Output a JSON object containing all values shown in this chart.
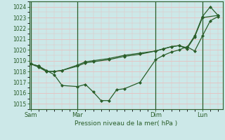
{
  "background_color": "#cce8e8",
  "grid_major_color": "#e8c0c0",
  "grid_minor_color": "#e8c0c0",
  "line_color": "#2a5e2a",
  "marker_color": "#2a5e2a",
  "title": "Pression niveau de la mer( hPa )",
  "xlabel_ticks": [
    "Sam",
    "Mar",
    "Dim",
    "Lun"
  ],
  "xlabel_tick_positions": [
    0,
    3,
    8,
    11
  ],
  "ylim": [
    1014.5,
    1024.5
  ],
  "yticks": [
    1015,
    1016,
    1017,
    1018,
    1019,
    1020,
    1021,
    1022,
    1023,
    1024
  ],
  "series1_x": [
    0,
    0.5,
    1.0,
    1.5,
    2.0,
    3.0,
    3.5,
    4.0,
    4.5,
    5.0,
    5.5,
    6.0,
    7.0,
    8.0,
    8.5,
    9.0,
    9.5,
    10.0,
    10.5,
    11.0,
    11.5,
    12.0
  ],
  "series1_y": [
    1018.7,
    1018.5,
    1018.1,
    1017.7,
    1016.7,
    1016.6,
    1016.8,
    1016.1,
    1015.3,
    1015.3,
    1016.3,
    1016.4,
    1017.0,
    1019.1,
    1019.5,
    1019.8,
    1020.0,
    1020.3,
    1019.9,
    1021.3,
    1022.7,
    1023.1
  ],
  "series2_x": [
    0,
    0.5,
    1.0,
    1.5,
    2.0,
    3.0,
    3.5,
    4.0,
    5.0,
    6.0,
    7.0,
    8.0,
    8.5,
    9.0,
    9.5,
    10.0,
    10.5,
    11.0,
    11.5,
    12.0
  ],
  "series2_y": [
    1018.7,
    1018.4,
    1018.0,
    1018.0,
    1018.1,
    1018.6,
    1018.9,
    1019.0,
    1019.2,
    1019.5,
    1019.7,
    1019.9,
    1020.1,
    1020.3,
    1020.4,
    1020.2,
    1021.3,
    1023.1,
    1024.0,
    1023.2
  ],
  "series3_x": [
    0,
    0.5,
    1.0,
    1.5,
    2.0,
    3.0,
    3.5,
    4.0,
    5.0,
    6.0,
    7.0,
    8.0,
    8.5,
    9.0,
    9.5,
    10.0,
    10.5,
    11.0,
    12.0
  ],
  "series3_y": [
    1018.7,
    1018.5,
    1018.0,
    1018.0,
    1018.1,
    1018.5,
    1018.8,
    1018.9,
    1019.1,
    1019.4,
    1019.6,
    1019.9,
    1020.1,
    1020.3,
    1020.4,
    1020.1,
    1021.2,
    1023.0,
    1023.2
  ],
  "vline_positions": [
    0,
    3,
    8,
    11
  ],
  "vline_color": "#2a5e2a",
  "xlim": [
    -0.1,
    12.3
  ]
}
